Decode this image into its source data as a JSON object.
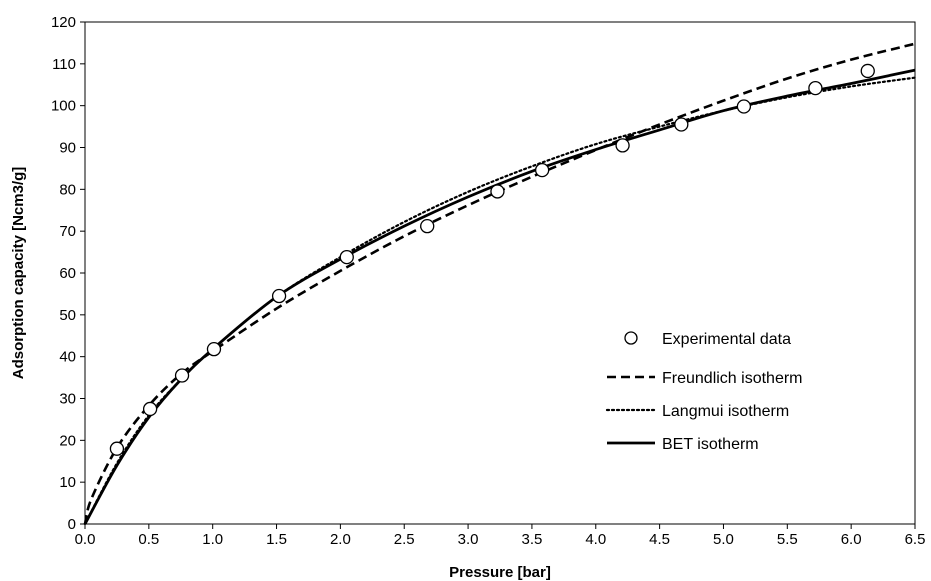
{
  "chart_data": {
    "type": "line",
    "xlabel": "Pressure [bar]",
    "ylabel": "Adsorption capacity [Ncm3/g]",
    "xlim": [
      0,
      6.5
    ],
    "ylim": [
      0,
      120
    ],
    "x_ticks": [
      "0.0",
      "0.5",
      "1.0",
      "1.5",
      "2.0",
      "2.5",
      "3.0",
      "3.5",
      "4.0",
      "4.5",
      "5.0",
      "5.5",
      "6.0",
      "6.5"
    ],
    "y_ticks": [
      "0",
      "10",
      "20",
      "30",
      "40",
      "50",
      "60",
      "70",
      "80",
      "90",
      "100",
      "110",
      "120"
    ],
    "grid": false,
    "legend_position": "lower-right",
    "series": [
      {
        "name": "Experimental data",
        "style": "markers-open-circle",
        "color": "#000000",
        "x": [
          0.25,
          0.51,
          0.76,
          1.01,
          1.52,
          2.05,
          2.68,
          3.23,
          3.58,
          4.21,
          4.67,
          5.16,
          5.72,
          6.13
        ],
        "y": [
          18.0,
          27.5,
          35.5,
          41.8,
          54.5,
          63.8,
          71.2,
          79.5,
          84.6,
          90.5,
          95.5,
          99.8,
          104.2,
          108.3
        ]
      },
      {
        "name": "Freundlich isotherm",
        "style": "dashed",
        "color": "#000000",
        "x": [
          0.0,
          0.05,
          0.25,
          0.5,
          0.75,
          1.0,
          1.5,
          2.0,
          2.5,
          3.0,
          3.5,
          4.0,
          4.5,
          5.0,
          5.5,
          6.0,
          6.5
        ],
        "y": [
          0.0,
          6.0,
          18.2,
          28.3,
          35.8,
          41.3,
          51.5,
          60.5,
          68.8,
          76.2,
          83.0,
          89.4,
          95.5,
          101.2,
          106.5,
          111.0,
          114.8
        ]
      },
      {
        "name": "Langmui isotherm",
        "style": "dotted",
        "color": "#000000",
        "x": [
          0.0,
          0.25,
          0.5,
          0.75,
          1.0,
          1.5,
          2.0,
          2.5,
          3.0,
          3.5,
          4.0,
          4.5,
          5.0,
          5.5,
          6.0,
          6.5
        ],
        "y": [
          0.0,
          14.5,
          26.0,
          34.5,
          41.8,
          54.3,
          63.8,
          72.2,
          79.4,
          85.5,
          90.8,
          95.0,
          98.8,
          102.0,
          104.6,
          106.7
        ]
      },
      {
        "name": "BET isotherm",
        "style": "solid",
        "color": "#000000",
        "x": [
          0.0,
          0.25,
          0.5,
          0.75,
          1.0,
          1.5,
          2.0,
          2.5,
          3.0,
          3.5,
          4.0,
          4.5,
          5.0,
          5.5,
          6.0,
          6.5
        ],
        "y": [
          0.0,
          14.0,
          25.5,
          34.5,
          41.8,
          54.3,
          63.3,
          71.2,
          78.2,
          84.3,
          89.5,
          94.2,
          98.8,
          102.3,
          105.3,
          108.5
        ]
      }
    ]
  }
}
